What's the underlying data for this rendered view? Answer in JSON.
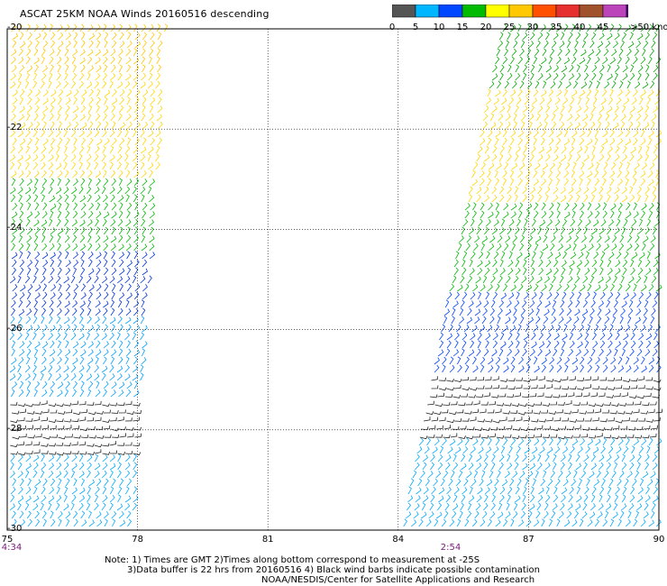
{
  "title": "ASCAT 25KM NOAA Winds 20160516 descending",
  "colorbar": {
    "labels": [
      "0",
      "5",
      "10",
      "15",
      "20",
      "25",
      "30",
      "35",
      "40",
      "45",
      ">50 knots"
    ],
    "colors": [
      "#555555",
      "#00b7ff",
      "#0047ff",
      "#00bb00",
      "#ffff00",
      "#ffc800",
      "#ff5000",
      "#e63030",
      "#a0522d",
      "#bb44bb",
      "#4b0082"
    ]
  },
  "axes": {
    "lat_labels": [
      "-20",
      "-22",
      "-24",
      "-26",
      "-28",
      "-30"
    ],
    "lon_labels": [
      "75",
      "78",
      "81",
      "84",
      "87",
      "90"
    ]
  },
  "times": [
    "4:34",
    "2:54"
  ],
  "notes": {
    "line1": "Note: 1) Times are GMT 2)Times along bottom correspond to measurement at -25S",
    "line2": "3)Data buffer is 22 hrs from 20160516 4) Black wind barbs indicate possible contamination",
    "line3": "NOAA/NESDIS/Center for Satellite Applications and Research"
  },
  "swaths": [
    {
      "name": "west",
      "bands": [
        {
          "lat": [
            -20,
            -20.9
          ],
          "color": "#ffc800"
        },
        {
          "lat": [
            -20.9,
            -23.0
          ],
          "color": "#ffd700"
        },
        {
          "lat": [
            -23.0,
            -24.5
          ],
          "color": "#00bb00"
        },
        {
          "lat": [
            -24.5,
            -25.8
          ],
          "color": "#0033dd"
        },
        {
          "lat": [
            -25.8,
            -27.5
          ],
          "color": "#00a0ff"
        },
        {
          "lat": [
            -27.5,
            -28.6
          ],
          "color": "#222222"
        },
        {
          "lat": [
            -28.6,
            -30.0
          ],
          "color": "#00aaff"
        }
      ]
    },
    {
      "name": "east",
      "bands": [
        {
          "lat": [
            -20,
            -21.3
          ],
          "color": "#00aa00"
        },
        {
          "lat": [
            -21.3,
            -23.5
          ],
          "color": "#ffd700"
        },
        {
          "lat": [
            -23.5,
            -25.3
          ],
          "color": "#00bb00"
        },
        {
          "lat": [
            -25.3,
            -27.0
          ],
          "color": "#0044ff"
        },
        {
          "lat": [
            -27.0,
            -28.2
          ],
          "color": "#222222"
        },
        {
          "lat": [
            -28.2,
            -30.0
          ],
          "color": "#00aaff"
        }
      ]
    }
  ]
}
